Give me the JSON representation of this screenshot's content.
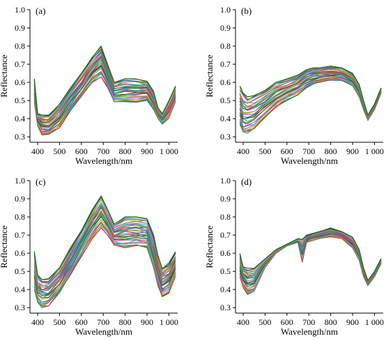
{
  "chart_data": [
    {
      "type": "line",
      "panel_label": "(a)",
      "xlabel": "Wavelength/nm",
      "ylabel": "Reflectance",
      "xlim": [
        365,
        1040
      ],
      "ylim": [
        0.27,
        1.0
      ],
      "x_ticks": [
        400,
        500,
        600,
        700,
        800,
        900,
        1000
      ],
      "x_tick_labels": [
        "400",
        "500",
        "600",
        "700",
        "800",
        "900",
        "1 000"
      ],
      "y_ticks": [
        0.3,
        0.4,
        0.5,
        0.6,
        0.7,
        0.8,
        0.9,
        1.0
      ],
      "y_tick_labels": [
        "0.3",
        "0.4",
        "0.5",
        "0.6",
        "0.7",
        "0.8",
        "0.9",
        "1.0"
      ],
      "series_count": 30,
      "x": [
        385,
        400,
        420,
        450,
        500,
        550,
        600,
        650,
        690,
        720,
        750,
        800,
        850,
        900,
        930,
        950,
        970,
        1000,
        1030
      ],
      "envelope_low": [
        0.49,
        0.36,
        0.31,
        0.31,
        0.35,
        0.44,
        0.52,
        0.6,
        0.63,
        0.57,
        0.49,
        0.49,
        0.49,
        0.5,
        0.45,
        0.4,
        0.37,
        0.4,
        0.49
      ],
      "envelope_high": [
        0.62,
        0.43,
        0.42,
        0.42,
        0.48,
        0.57,
        0.65,
        0.74,
        0.8,
        0.7,
        0.6,
        0.62,
        0.62,
        0.61,
        0.55,
        0.46,
        0.43,
        0.5,
        0.58
      ]
    },
    {
      "type": "line",
      "panel_label": "(b)",
      "xlabel": "Wavelength/nm",
      "ylabel": "Reflectance",
      "xlim": [
        365,
        1040
      ],
      "ylim": [
        0.27,
        1.0
      ],
      "x_ticks": [
        400,
        500,
        600,
        700,
        800,
        900,
        1000
      ],
      "x_tick_labels": [
        "400",
        "500",
        "600",
        "700",
        "800",
        "900",
        "1 000"
      ],
      "y_ticks": [
        0.3,
        0.4,
        0.5,
        0.6,
        0.7,
        0.8,
        0.9,
        1.0
      ],
      "y_tick_labels": [
        "0.3",
        "0.4",
        "0.5",
        "0.6",
        "0.7",
        "0.8",
        "0.9",
        "1.0"
      ],
      "series_count": 30,
      "x": [
        385,
        400,
        420,
        450,
        500,
        550,
        600,
        650,
        690,
        720,
        750,
        800,
        850,
        900,
        930,
        950,
        970,
        1000,
        1030
      ],
      "envelope_low": [
        0.37,
        0.32,
        0.32,
        0.34,
        0.4,
        0.46,
        0.5,
        0.53,
        0.57,
        0.59,
        0.6,
        0.61,
        0.61,
        0.58,
        0.52,
        0.45,
        0.39,
        0.45,
        0.54
      ],
      "envelope_high": [
        0.58,
        0.54,
        0.52,
        0.53,
        0.56,
        0.6,
        0.62,
        0.64,
        0.67,
        0.68,
        0.68,
        0.69,
        0.68,
        0.65,
        0.59,
        0.5,
        0.42,
        0.48,
        0.57
      ]
    },
    {
      "type": "line",
      "panel_label": "(c)",
      "xlabel": "Wavelength/nm",
      "ylabel": "Reflectance",
      "xlim": [
        365,
        1040
      ],
      "ylim": [
        0.27,
        1.0
      ],
      "x_ticks": [
        400,
        500,
        600,
        700,
        800,
        900,
        1000
      ],
      "x_tick_labels": [
        "400",
        "500",
        "600",
        "700",
        "800",
        "900",
        "1 000"
      ],
      "y_ticks": [
        0.3,
        0.4,
        0.5,
        0.6,
        0.7,
        0.8,
        0.9,
        1.0
      ],
      "y_tick_labels": [
        "0.3",
        "0.4",
        "0.5",
        "0.6",
        "0.7",
        "0.8",
        "0.9",
        "1.0"
      ],
      "series_count": 30,
      "x": [
        385,
        400,
        420,
        450,
        500,
        550,
        600,
        650,
        690,
        720,
        750,
        800,
        850,
        900,
        930,
        950,
        970,
        1000,
        1030
      ],
      "envelope_low": [
        0.4,
        0.33,
        0.3,
        0.31,
        0.38,
        0.48,
        0.58,
        0.68,
        0.74,
        0.7,
        0.64,
        0.63,
        0.64,
        0.63,
        0.52,
        0.42,
        0.36,
        0.38,
        0.47
      ],
      "envelope_high": [
        0.61,
        0.48,
        0.46,
        0.46,
        0.52,
        0.63,
        0.73,
        0.84,
        0.92,
        0.84,
        0.76,
        0.8,
        0.8,
        0.79,
        0.7,
        0.59,
        0.52,
        0.55,
        0.61
      ]
    },
    {
      "type": "line",
      "panel_label": "(d)",
      "xlabel": "Wavelength/nm",
      "ylabel": "Reflectance",
      "xlim": [
        365,
        1040
      ],
      "ylim": [
        0.27,
        1.0
      ],
      "x_ticks": [
        400,
        500,
        600,
        700,
        800,
        900,
        1000
      ],
      "x_tick_labels": [
        "400",
        "500",
        "600",
        "700",
        "800",
        "900",
        "1 000"
      ],
      "y_ticks": [
        0.3,
        0.4,
        0.5,
        0.6,
        0.7,
        0.8,
        0.9,
        1.0
      ],
      "y_tick_labels": [
        "0.3",
        "0.4",
        "0.5",
        "0.6",
        "0.7",
        "0.8",
        "0.9",
        "1.0"
      ],
      "series_count": 30,
      "x": [
        385,
        400,
        420,
        450,
        500,
        550,
        600,
        650,
        670,
        690,
        720,
        750,
        800,
        850,
        900,
        930,
        950,
        970,
        1000,
        1030
      ],
      "envelope_low": [
        0.47,
        0.41,
        0.37,
        0.39,
        0.52,
        0.6,
        0.64,
        0.66,
        0.55,
        0.66,
        0.67,
        0.68,
        0.69,
        0.68,
        0.63,
        0.56,
        0.47,
        0.42,
        0.47,
        0.54
      ],
      "envelope_high": [
        0.6,
        0.53,
        0.52,
        0.52,
        0.57,
        0.62,
        0.65,
        0.68,
        0.68,
        0.7,
        0.71,
        0.72,
        0.74,
        0.72,
        0.69,
        0.62,
        0.52,
        0.45,
        0.5,
        0.57
      ]
    }
  ],
  "series_colors": [
    "#1f77b4",
    "#d62728",
    "#2ca02c",
    "#ff7f0e",
    "#9467bd",
    "#17becf",
    "#8c564b",
    "#e377c2",
    "#bcbd22",
    "#1a4d8f",
    "#7f7f7f",
    "#006400",
    "#c0392b",
    "#16a085",
    "#8e44ad",
    "#27ae60",
    "#e67e22",
    "#2980b9"
  ],
  "axis_color": "#000000"
}
